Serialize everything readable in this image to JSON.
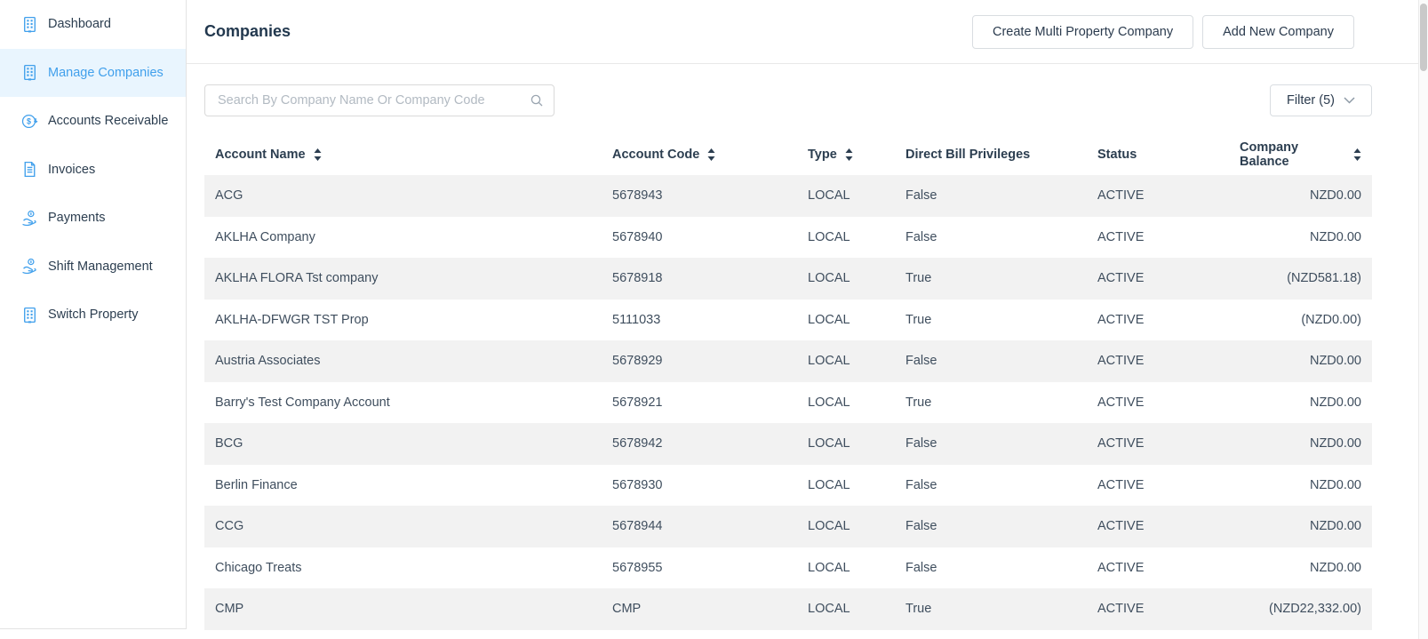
{
  "colors": {
    "accent_blue": "#41A0EC",
    "active_item_bg": "#E9F5FE",
    "heading_text": "#2C3E50",
    "row_alt_bg": "#F2F2F2"
  },
  "sidebar": {
    "items": [
      {
        "label": "Dashboard",
        "icon": "building-icon",
        "active": false
      },
      {
        "label": "Manage Companies",
        "icon": "building-icon",
        "active": true
      },
      {
        "label": "Accounts Receivable",
        "icon": "dollar-circle-icon",
        "active": false
      },
      {
        "label": "Invoices",
        "icon": "invoice-icon",
        "active": false
      },
      {
        "label": "Payments",
        "icon": "hand-coin-icon",
        "active": false
      },
      {
        "label": "Shift Management",
        "icon": "hand-coin-icon",
        "active": false
      },
      {
        "label": "Switch Property",
        "icon": "building-icon",
        "active": false
      }
    ]
  },
  "header": {
    "title": "Companies",
    "create_multi_button": "Create Multi Property Company",
    "add_new_button": "Add New Company"
  },
  "toolbar": {
    "search_placeholder": "Search By Company Name Or Company Code",
    "search_value": "",
    "filter_label": "Filter (5)"
  },
  "table": {
    "columns": [
      {
        "label": "Account Name",
        "sortable": true,
        "align": "left"
      },
      {
        "label": "Account Code",
        "sortable": true,
        "align": "left"
      },
      {
        "label": "Type",
        "sortable": true,
        "align": "left"
      },
      {
        "label": "Direct Bill Privileges",
        "sortable": false,
        "align": "left"
      },
      {
        "label": "Status",
        "sortable": false,
        "align": "left"
      },
      {
        "label": "Company Balance",
        "sortable": true,
        "align": "right"
      }
    ],
    "rows": [
      [
        "ACG",
        "5678943",
        "LOCAL",
        "False",
        "ACTIVE",
        "NZD0.00"
      ],
      [
        "AKLHA Company",
        "5678940",
        "LOCAL",
        "False",
        "ACTIVE",
        "NZD0.00"
      ],
      [
        "AKLHA FLORA Tst company",
        "5678918",
        "LOCAL",
        "True",
        "ACTIVE",
        "(NZD581.18)"
      ],
      [
        "AKLHA-DFWGR TST Prop",
        "5111033",
        "LOCAL",
        "True",
        "ACTIVE",
        "(NZD0.00)"
      ],
      [
        "Austria Associates",
        "5678929",
        "LOCAL",
        "False",
        "ACTIVE",
        "NZD0.00"
      ],
      [
        "Barry's Test Company Account",
        "5678921",
        "LOCAL",
        "True",
        "ACTIVE",
        "NZD0.00"
      ],
      [
        "BCG",
        "5678942",
        "LOCAL",
        "False",
        "ACTIVE",
        "NZD0.00"
      ],
      [
        "Berlin Finance",
        "5678930",
        "LOCAL",
        "False",
        "ACTIVE",
        "NZD0.00"
      ],
      [
        "CCG",
        "5678944",
        "LOCAL",
        "False",
        "ACTIVE",
        "NZD0.00"
      ],
      [
        "Chicago Treats",
        "5678955",
        "LOCAL",
        "False",
        "ACTIVE",
        "NZD0.00"
      ],
      [
        "CMP",
        "CMP",
        "LOCAL",
        "True",
        "ACTIVE",
        "(NZD22,332.00)"
      ]
    ]
  }
}
